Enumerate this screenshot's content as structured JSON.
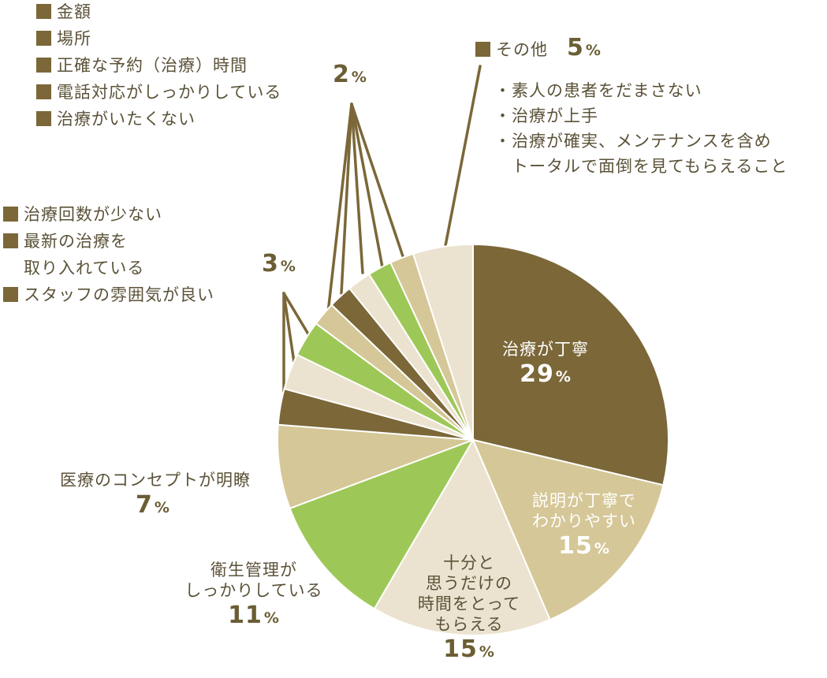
{
  "colors": {
    "dark": "#7b6738",
    "tan": "#d5c797",
    "beige": "#ebe3cf",
    "green": "#9dc857",
    "line": "#7b6738",
    "text": "#5b5238"
  },
  "chart_data": {
    "type": "pie",
    "unit": "%",
    "slices": [
      {
        "label": "治療が丁寧",
        "value": 29,
        "color": "dark"
      },
      {
        "label": "説明が丁寧でわかりやすい",
        "value": 15,
        "color": "tan"
      },
      {
        "label": "十分と思うだけの時間をとってもらえる",
        "value": 15,
        "color": "beige"
      },
      {
        "label": "衛生管理がしっかりしている",
        "value": 11,
        "color": "green"
      },
      {
        "label": "医療のコンセプトが明瞭",
        "value": 7,
        "color": "tan"
      },
      {
        "label": "スタッフの雰囲気が良い",
        "value": 3,
        "color": "dark"
      },
      {
        "label": "最新の治療を取り入れている",
        "value": 3,
        "color": "beige"
      },
      {
        "label": "治療回数が少ない",
        "value": 3,
        "color": "green"
      },
      {
        "label": "治療がいたくない",
        "value": 2,
        "color": "tan"
      },
      {
        "label": "電話対応がしっかりしている",
        "value": 2,
        "color": "dark"
      },
      {
        "label": "正確な予約（治療）時間",
        "value": 2,
        "color": "beige"
      },
      {
        "label": "場所",
        "value": 2,
        "color": "green"
      },
      {
        "label": "金額",
        "value": 2,
        "color": "tan"
      },
      {
        "label": "その他",
        "value": 5,
        "color": "beige"
      }
    ]
  },
  "labels": {
    "s1": {
      "text": "治療が丁寧",
      "num": "29",
      "pct": "%"
    },
    "s2": {
      "line1": "説明が丁寧で",
      "line2": "わかりやすい",
      "num": "15",
      "pct": "%"
    },
    "s3": {
      "line1": "十分と",
      "line2": "思うだけの",
      "line3": "時間をとって",
      "line4": "もらえる",
      "num": "15",
      "pct": "%"
    },
    "s4": {
      "line1": "衛生管理が",
      "line2": "しっかりしている",
      "num": "11",
      "pct": "%"
    },
    "s5": {
      "text": "医療のコンセプトが明瞭",
      "num": "7",
      "pct": "%"
    }
  },
  "groups": {
    "three_pct": {
      "num": "3",
      "pct": "%",
      "items": [
        {
          "label": "治療回数が少ない",
          "color": "green"
        },
        {
          "label": "最新の治療を",
          "label2": "取り入れている",
          "color": "beige"
        },
        {
          "label": "スタッフの雰囲気が良い",
          "color": "dark"
        }
      ]
    },
    "two_pct": {
      "num": "2",
      "pct": "%",
      "items": [
        {
          "label": "金額",
          "color": "tan"
        },
        {
          "label": "場所",
          "color": "green"
        },
        {
          "label": "正確な予約（治療）時間",
          "color": "beige"
        },
        {
          "label": "電話対応がしっかりしている",
          "color": "dark"
        },
        {
          "label": "治療がいたくない",
          "color": "tan"
        }
      ]
    },
    "other": {
      "label": "その他",
      "num": "5",
      "pct": "%",
      "color": "dark",
      "notes": [
        "・素人の患者をだまさない",
        "・治療が上手",
        "・治療が確実、メンテナンスを含め",
        "　トータルで面倒を見てもらえること"
      ]
    }
  }
}
